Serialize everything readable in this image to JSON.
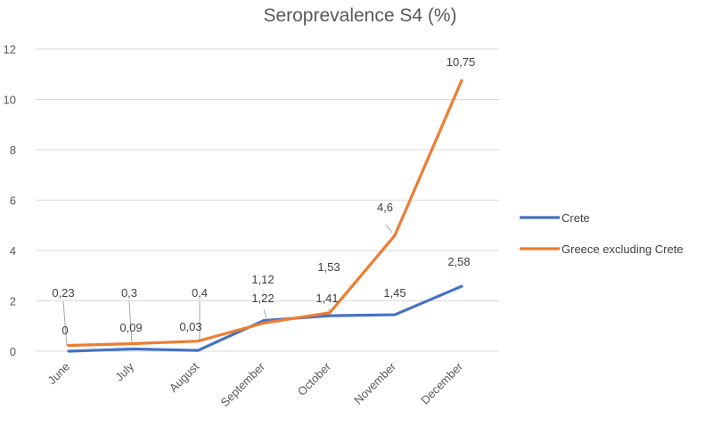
{
  "chart_data": {
    "type": "line",
    "title": "Seroprevalence S4 (%)",
    "xlabel": "",
    "ylabel": "",
    "categories": [
      "June",
      "July",
      "August",
      "September",
      "October",
      "November",
      "December"
    ],
    "ylim": [
      0,
      12
    ],
    "yticks": [
      0,
      2,
      4,
      6,
      8,
      10,
      12
    ],
    "grid": true,
    "legend_position": "right",
    "series": [
      {
        "name": "Crete",
        "color": "#4472C4",
        "values": [
          0,
          0.09,
          0.03,
          1.22,
          1.41,
          1.45,
          2.58
        ],
        "labels": [
          "0",
          "0,09",
          "0,03",
          "1,22",
          "1,41",
          "1,45",
          "2,58"
        ]
      },
      {
        "name": "Greece excluding Crete",
        "color": "#ED7D31",
        "values": [
          0.23,
          0.3,
          0.4,
          1.12,
          1.53,
          4.6,
          10.75
        ],
        "labels": [
          "0,23",
          "0,3",
          "0,4",
          "1,12",
          "1,53",
          "4,6",
          "10,75"
        ]
      }
    ]
  }
}
